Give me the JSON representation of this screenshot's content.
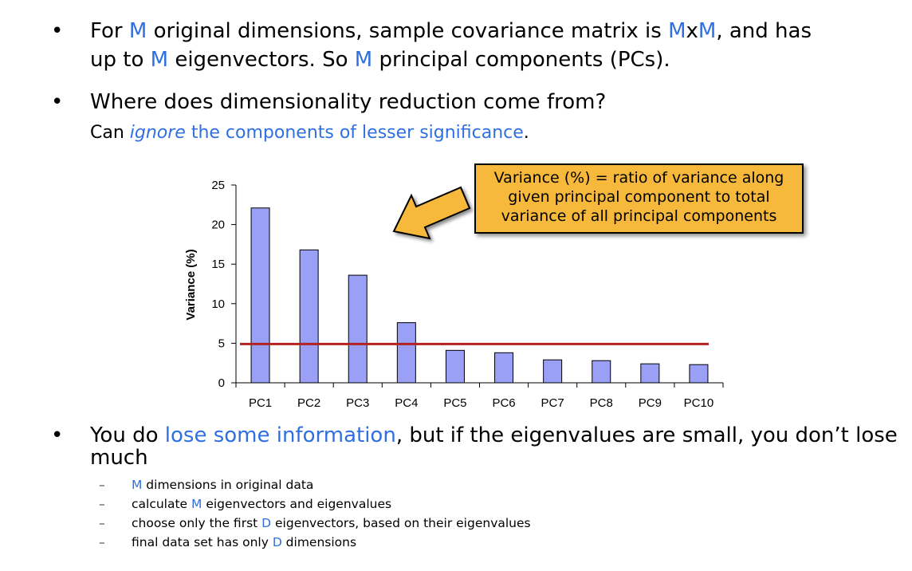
{
  "bullets": {
    "b1": {
      "dot": "•",
      "p1": "For ",
      "m1": "M",
      "p2": " original dimensions, sample covariance matrix is ",
      "m2": "M",
      "p3": "x",
      "m3": "M",
      "p4": ", and has",
      "p5": "up to ",
      "m4": "M",
      "p6": " eigenvectors. So ",
      "m5": "M",
      "p7": " principal components (PCs)."
    },
    "b2": {
      "dot": "•",
      "text": "Where does dimensionality reduction come from?",
      "sub_p1": "Can ",
      "sub_ignore": "ignore",
      "sub_rest": " the components of lesser significance",
      "sub_end": "."
    },
    "b3": {
      "dot": "•",
      "p1": "You do ",
      "highlight": "lose some information",
      "p2": ", but if the eigenvalues are small, you don’t lose",
      "p3": "much"
    }
  },
  "sub_items": {
    "dash": "–",
    "i1": {
      "m": "M",
      "rest": " dimensions in original data"
    },
    "i2": {
      "pre": "calculate ",
      "m": "M",
      "rest": " eigenvectors and eigenvalues"
    },
    "i3": {
      "pre": "choose only the first ",
      "m": "D",
      "rest": " eigenvectors, based on their eigenvalues"
    },
    "i4": {
      "pre": "final data set has only ",
      "m": "D",
      "rest": " dimensions"
    }
  },
  "callout": {
    "line1": "Variance (%) = ratio of variance along",
    "line2": "given principal component to total",
    "line3": "variance of all principal components"
  },
  "colors": {
    "accent_blue": "#2f6fe0",
    "bar_fill": "#9aa0f5",
    "threshold_line": "#b22222",
    "callout_fill": "#f6b93b"
  },
  "chart_data": {
    "type": "bar",
    "categories": [
      "PC1",
      "PC2",
      "PC3",
      "PC4",
      "PC5",
      "PC6",
      "PC7",
      "PC8",
      "PC9",
      "PC10"
    ],
    "values": [
      22.1,
      16.8,
      13.6,
      7.6,
      4.1,
      3.8,
      2.9,
      2.8,
      2.4,
      2.3
    ],
    "ylabel": "Variance (%)",
    "xlabel": "",
    "ylim": [
      0,
      25
    ],
    "yticks": [
      0,
      5,
      10,
      15,
      20,
      25
    ],
    "threshold": 4.9,
    "grid": false
  }
}
